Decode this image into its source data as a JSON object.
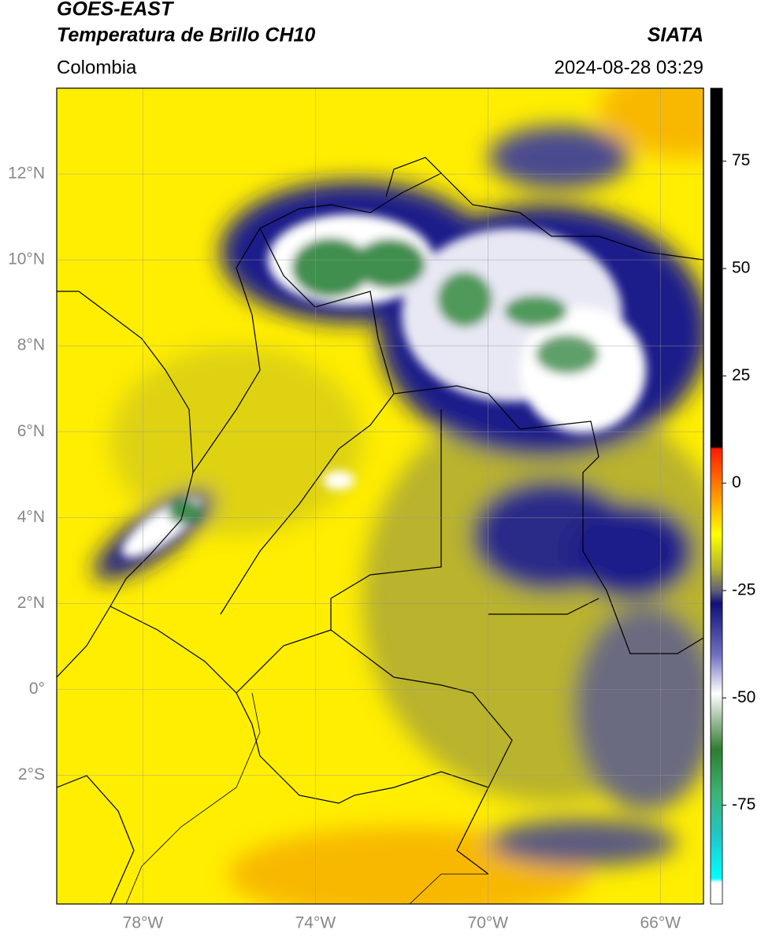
{
  "header": {
    "title": "GOES-EAST",
    "subtitle": "Temperatura de Brillo CH10",
    "region": "Colombia",
    "source": "SIATA",
    "datetime": "2024-08-28 03:29"
  },
  "map": {
    "xlim": [
      -80,
      -65
    ],
    "ylim": [
      -5,
      14
    ],
    "grid": true,
    "xticks": [
      {
        "value": -78,
        "label": "78°W"
      },
      {
        "value": -74,
        "label": "74°W"
      },
      {
        "value": -70,
        "label": "70°W"
      },
      {
        "value": -66,
        "label": "66°W"
      }
    ],
    "yticks": [
      {
        "value": 12,
        "label": "12°N"
      },
      {
        "value": 10,
        "label": "10°N"
      },
      {
        "value": 8,
        "label": "8°N"
      },
      {
        "value": 6,
        "label": "6°N"
      },
      {
        "value": 4,
        "label": "4°N"
      },
      {
        "value": 2,
        "label": "2°N"
      },
      {
        "value": 0,
        "label": "0°"
      },
      {
        "value": -2,
        "label": "2°S"
      }
    ]
  },
  "colorbar": {
    "lim": [
      -98,
      92
    ],
    "ticks": [
      75,
      50,
      25,
      0,
      -25,
      -50,
      -75
    ],
    "stops": [
      {
        "value": 92,
        "color": "#000000"
      },
      {
        "value": 8.5,
        "color": "#000000"
      },
      {
        "value": 8,
        "color": "#ff1a00"
      },
      {
        "value": -2,
        "color": "#ff8c00"
      },
      {
        "value": -12,
        "color": "#ffff00"
      },
      {
        "value": -20,
        "color": "#b0b030"
      },
      {
        "value": -25,
        "color": "#606078"
      },
      {
        "value": -28,
        "color": "#10107a"
      },
      {
        "value": -40,
        "color": "#7070c0"
      },
      {
        "value": -49,
        "color": "#ffffff"
      },
      {
        "value": -55,
        "color": "#a0c0a0"
      },
      {
        "value": -62,
        "color": "#2e7d32"
      },
      {
        "value": -72,
        "color": "#3cb371"
      },
      {
        "value": -82,
        "color": "#20c8c8"
      },
      {
        "value": -92,
        "color": "#00ffff"
      },
      {
        "value": -93,
        "color": "#ffffff"
      },
      {
        "value": -98,
        "color": "#ffffff"
      }
    ]
  }
}
